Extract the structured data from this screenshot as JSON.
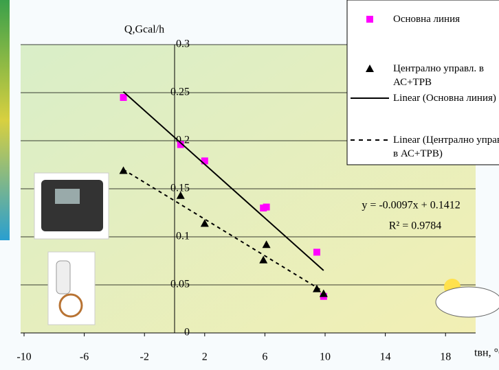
{
  "chart_data": {
    "type": "scatter",
    "y_label": "Q,Gcal/h",
    "x_label": "tвн, °C",
    "xlim": [
      -10,
      20
    ],
    "xticks": [
      -10,
      -6,
      -2,
      2,
      6,
      10,
      14,
      18
    ],
    "ylim": [
      0,
      0.3
    ],
    "yticks": [
      0,
      0.05,
      0.1,
      0.15,
      0.2,
      0.25,
      0.3
    ],
    "grid": true,
    "series": [
      {
        "name": "Основна линия",
        "color": "#ff00ff",
        "marker": "square",
        "x": [
          -3.4,
          0.4,
          2.0,
          5.9,
          6.1,
          9.45,
          9.9
        ],
        "values": [
          0.245,
          0.196,
          0.179,
          0.13,
          0.131,
          0.084,
          0.038
        ]
      },
      {
        "name": "Централно управл. в АС+ТРВ",
        "color": "#000000",
        "marker": "triangle",
        "x": [
          -3.4,
          0.4,
          2.0,
          5.9,
          6.1,
          9.45,
          9.9
        ],
        "values": [
          0.169,
          0.143,
          0.114,
          0.076,
          0.092,
          0.046,
          0.041
        ]
      },
      {
        "name": "Linear (Основна линия)",
        "color": "#000000",
        "marker": "line",
        "dash": false,
        "x": [
          -3.4,
          9.9
        ],
        "values": [
          0.251,
          0.065
        ]
      },
      {
        "name": "Linear (Централно управл. в АС+ТРВ)",
        "color": "#000000",
        "marker": "line",
        "dash": true,
        "x": [
          -3.4,
          9.9
        ],
        "values": [
          0.17,
          0.043
        ]
      }
    ],
    "annotations": [
      "y = -0.0097x + 0.1412",
      "R² = 0.9784"
    ]
  }
}
